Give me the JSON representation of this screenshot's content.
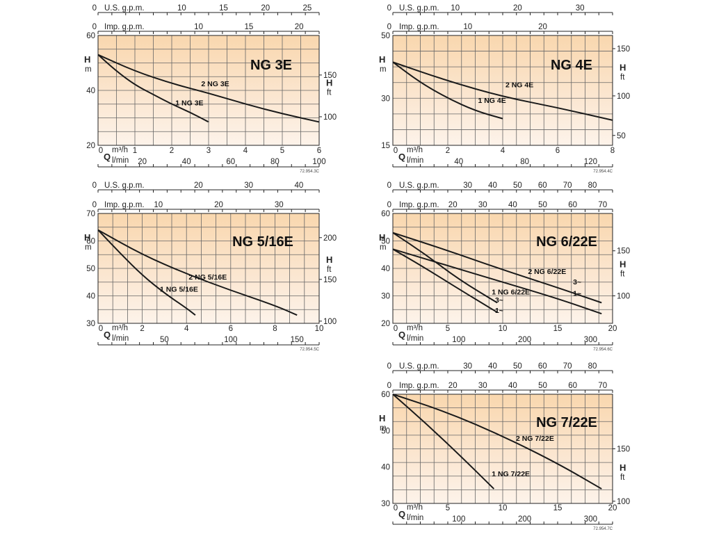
{
  "chart_data": [
    {
      "type": "line",
      "title": "NG 3E",
      "code": "72.954.3C",
      "top_axes": [
        {
          "label": "U.S. g.p.m.",
          "ticks": [
            0,
            10,
            15,
            20,
            25
          ],
          "tick_labels": [
            "0",
            "10",
            "15",
            "20",
            "25"
          ]
        },
        {
          "label": "Imp. g.p.m.",
          "ticks": [
            0,
            10,
            15,
            20
          ],
          "tick_labels": [
            "0",
            "10",
            "15",
            "20"
          ]
        }
      ],
      "xlim": [
        0,
        6
      ],
      "x_ticks": [
        0,
        1,
        2,
        3,
        4,
        5,
        6
      ],
      "x_tick_labels": [
        "0",
        "1",
        "2",
        "3",
        "4",
        "5",
        "6"
      ],
      "x_unit_top": "m³/h",
      "x_symbol": "Q",
      "x_unit_bottom": "l/min",
      "x2_ticks": [
        20,
        40,
        60,
        80,
        100
      ],
      "x2_tick_labels": [
        "20",
        "40",
        "60",
        "80",
        "100"
      ],
      "ylim": [
        20,
        60
      ],
      "y_ticks": [
        20,
        40,
        60
      ],
      "y_tick_labels": [
        "20",
        "40",
        "60"
      ],
      "y_symbol": "H",
      "y_unit": "m",
      "y2_symbol": "H",
      "y2_unit": "ft",
      "y2_ticks": [
        100,
        150
      ],
      "y2_tick_labels": [
        "100",
        "150"
      ],
      "series": [
        {
          "name": "1 NG 3E",
          "x": [
            0,
            0.5,
            1,
            1.5,
            2,
            2.5,
            3
          ],
          "y": [
            53,
            47,
            42,
            38.5,
            35,
            32,
            28.5
          ],
          "label_at": [
            2.1,
            34.5
          ]
        },
        {
          "name": "2 NG 3E",
          "x": [
            0,
            1,
            2,
            3,
            4,
            5,
            6
          ],
          "y": [
            53,
            47,
            42.5,
            39,
            35,
            31.5,
            28.5
          ],
          "label_at": [
            2.8,
            41.5
          ]
        }
      ]
    },
    {
      "type": "line",
      "title": "NG 4E",
      "code": "72.954.4C",
      "top_axes": [
        {
          "label": "U.S. g.p.m.",
          "ticks": [
            0,
            10,
            20,
            30
          ],
          "tick_labels": [
            "0",
            "10",
            "20",
            "30"
          ]
        },
        {
          "label": "Imp. g.p.m.",
          "ticks": [
            0,
            10,
            20
          ],
          "tick_labels": [
            "0",
            "10",
            "20"
          ]
        }
      ],
      "xlim": [
        0,
        8
      ],
      "x_ticks": [
        0,
        2,
        4,
        6,
        8
      ],
      "x_tick_labels": [
        "0",
        "2",
        "4",
        "6",
        "8"
      ],
      "x_unit_top": "m³/h",
      "x_symbol": "Q",
      "x_unit_bottom": "l/min",
      "x2_ticks": [
        40,
        80,
        120
      ],
      "x2_tick_labels": [
        "40",
        "80",
        "120"
      ],
      "ylim": [
        15,
        50
      ],
      "y_ticks": [
        15,
        30,
        50
      ],
      "y_tick_labels": [
        "15",
        "30",
        "50"
      ],
      "y_symbol": "H",
      "y_unit": "m",
      "y2_symbol": "H",
      "y2_unit": "ft",
      "y2_ticks": [
        50,
        100,
        150
      ],
      "y2_tick_labels": [
        "50",
        "100",
        "150"
      ],
      "series": [
        {
          "name": "1 NG 4E",
          "x": [
            0,
            1,
            2,
            3,
            4
          ],
          "y": [
            41.5,
            35,
            30,
            26,
            23.5
          ],
          "label_at": [
            3.1,
            28.5
          ]
        },
        {
          "name": "2 NG 4E",
          "x": [
            0,
            2,
            4,
            6,
            8
          ],
          "y": [
            41.5,
            35.5,
            30.5,
            27,
            23
          ],
          "label_at": [
            4.1,
            33.5
          ]
        }
      ]
    },
    {
      "type": "line",
      "title": "NG 5/16E",
      "code": "72.954.5C",
      "top_axes": [
        {
          "label": "U.S. g.p.m.",
          "ticks": [
            0,
            20,
            30,
            40
          ],
          "tick_labels": [
            "0",
            "20",
            "30",
            "40"
          ]
        },
        {
          "label": "Imp. g.p.m.",
          "ticks": [
            0,
            10,
            20,
            30
          ],
          "tick_labels": [
            "0",
            "10",
            "20",
            "30"
          ]
        }
      ],
      "xlim": [
        0,
        10
      ],
      "x_ticks": [
        0,
        2,
        4,
        6,
        8,
        10
      ],
      "x_tick_labels": [
        "0",
        "2",
        "4",
        "6",
        "8",
        "10"
      ],
      "x_unit_top": "m³/h",
      "x_symbol": "Q",
      "x_unit_bottom": "l/min",
      "x2_ticks": [
        50,
        100,
        150
      ],
      "x2_tick_labels": [
        "50",
        "100",
        "150"
      ],
      "ylim": [
        30,
        70
      ],
      "y_ticks": [
        30,
        40,
        50,
        60,
        70
      ],
      "y_tick_labels": [
        "30",
        "40",
        "50",
        "60",
        "70"
      ],
      "y_symbol": "H",
      "y_unit": "m",
      "y2_symbol": "H",
      "y2_unit": "ft",
      "y2_ticks": [
        100,
        150,
        200
      ],
      "y2_tick_labels": [
        "100",
        "150",
        "200"
      ],
      "series": [
        {
          "name": "1 NG 5/16E",
          "x": [
            0,
            1,
            2,
            3,
            4,
            4.4
          ],
          "y": [
            64,
            55.5,
            47.5,
            41,
            35.5,
            33
          ],
          "label_at": [
            2.8,
            41.5
          ]
        },
        {
          "name": "2 NG 5/16E",
          "x": [
            0,
            2,
            4,
            6,
            8,
            9
          ],
          "y": [
            64,
            55,
            48,
            42,
            36.5,
            33
          ],
          "label_at": [
            4.1,
            46
          ]
        }
      ]
    },
    {
      "type": "line",
      "title": "NG 6/22E",
      "code": "72.954.6C",
      "top_axes": [
        {
          "label": "U.S. g.p.m.",
          "ticks": [
            0,
            30,
            40,
            50,
            60,
            70,
            80
          ],
          "tick_labels": [
            "0",
            "30",
            "40",
            "50",
            "60",
            "70",
            "80"
          ]
        },
        {
          "label": "Imp. g.p.m.",
          "ticks": [
            0,
            20,
            30,
            40,
            50,
            60,
            70
          ],
          "tick_labels": [
            "0",
            "20",
            "30",
            "40",
            "50",
            "60",
            "70"
          ]
        }
      ],
      "xlim": [
        0,
        20
      ],
      "x_ticks": [
        0,
        5,
        10,
        15,
        20
      ],
      "x_tick_labels": [
        "0",
        "5",
        "10",
        "15",
        "20"
      ],
      "x_unit_top": "m³/h",
      "x_symbol": "Q",
      "x_unit_bottom": "l/min",
      "x2_ticks": [
        100,
        200,
        300
      ],
      "x2_tick_labels": [
        "100",
        "200",
        "300"
      ],
      "ylim": [
        20,
        60
      ],
      "y_ticks": [
        20,
        30,
        40,
        50,
        60
      ],
      "y_tick_labels": [
        "20",
        "30",
        "40",
        "50",
        "60"
      ],
      "y_symbol": "H",
      "y_unit": "m",
      "y2_symbol": "H",
      "y2_unit": "ft",
      "y2_ticks": [
        100,
        150
      ],
      "y2_tick_labels": [
        "100",
        "150"
      ],
      "series": [
        {
          "name": "1 NG 6/22E 3~",
          "x": [
            0,
            3,
            6,
            9.5
          ],
          "y": [
            53,
            45,
            36,
            27.5
          ],
          "label_at": [
            9.3,
            27.6
          ],
          "end_label": "3~"
        },
        {
          "name": "1 NG 6/22E 1~",
          "x": [
            0,
            3,
            6,
            9.5
          ],
          "y": [
            47,
            40,
            32.5,
            24
          ],
          "label_at": [
            9.3,
            23.8
          ],
          "end_label": "1~"
        },
        {
          "name": "2 NG 6/22E 3~",
          "x": [
            0,
            5,
            10,
            15,
            19
          ],
          "y": [
            53,
            46.5,
            39.5,
            33,
            27.5
          ],
          "label_at": [
            16.4,
            34.2
          ],
          "end_label": "3~"
        },
        {
          "name": "2 NG 6/22E 1~",
          "x": [
            0,
            5,
            10,
            15,
            19
          ],
          "y": [
            47,
            41,
            35,
            29,
            23.5
          ],
          "label_at": [
            16.4,
            30
          ],
          "end_label": "1~"
        }
      ],
      "labels": [
        {
          "text": "1 NG 6/22E",
          "at": [
            9,
            30.5
          ]
        },
        {
          "text": "2 NG 6/22E",
          "at": [
            12.3,
            38
          ]
        }
      ]
    },
    {
      "type": "line",
      "title": "NG 7/22E",
      "code": "72.954.7C",
      "top_axes": [
        {
          "label": "U.S. g.p.m.",
          "ticks": [
            0,
            30,
            40,
            50,
            60,
            70,
            80
          ],
          "tick_labels": [
            "0",
            "30",
            "40",
            "50",
            "60",
            "70",
            "80"
          ]
        },
        {
          "label": "Imp. g.p.m.",
          "ticks": [
            0,
            20,
            30,
            40,
            50,
            60,
            70
          ],
          "tick_labels": [
            "0",
            "20",
            "30",
            "40",
            "50",
            "60",
            "70"
          ]
        }
      ],
      "xlim": [
        0,
        20
      ],
      "x_ticks": [
        0,
        5,
        10,
        15,
        20
      ],
      "x_tick_labels": [
        "0",
        "5",
        "10",
        "15",
        "20"
      ],
      "x_unit_top": "m³/h",
      "x_symbol": "Q",
      "x_unit_bottom": "l/min",
      "x2_ticks": [
        100,
        200,
        300
      ],
      "x2_tick_labels": [
        "100",
        "200",
        "300"
      ],
      "ylim": [
        30,
        60
      ],
      "y_ticks": [
        30,
        40,
        50,
        60
      ],
      "y_tick_labels": [
        "30",
        "40",
        "50",
        "60"
      ],
      "y_symbol": "H",
      "y_unit": "m",
      "y2_symbol": "H",
      "y2_unit": "ft",
      "y2_ticks": [
        100,
        150
      ],
      "y2_tick_labels": [
        "100",
        "150"
      ],
      "series": [
        {
          "name": "1 NG 7/22E",
          "x": [
            0,
            3,
            6,
            9.2
          ],
          "y": [
            60,
            52,
            43.5,
            34
          ],
          "label_at": [
            9,
            37.5
          ]
        },
        {
          "name": "2 NG 7/22E",
          "x": [
            0,
            5,
            10,
            15,
            19
          ],
          "y": [
            60,
            55,
            48.5,
            41,
            34
          ],
          "label_at": [
            11.2,
            47.2
          ]
        }
      ]
    }
  ]
}
